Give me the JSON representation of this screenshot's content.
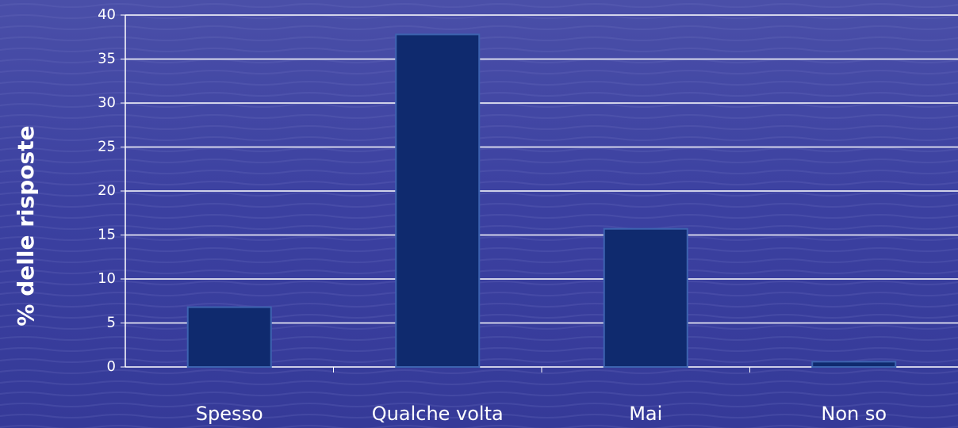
{
  "chart_data": {
    "type": "bar",
    "y_label": "% delle risposte",
    "categories": [
      "Spesso",
      "Qualche volta",
      "Mai",
      "Non so"
    ],
    "values": [
      6.8,
      37.8,
      15.7,
      0.6
    ],
    "color": "#0f2a6e",
    "ylim": [
      0,
      40
    ],
    "yticks": [
      0,
      5,
      10,
      15,
      20,
      25,
      30,
      35,
      40
    ],
    "grid": true
  }
}
